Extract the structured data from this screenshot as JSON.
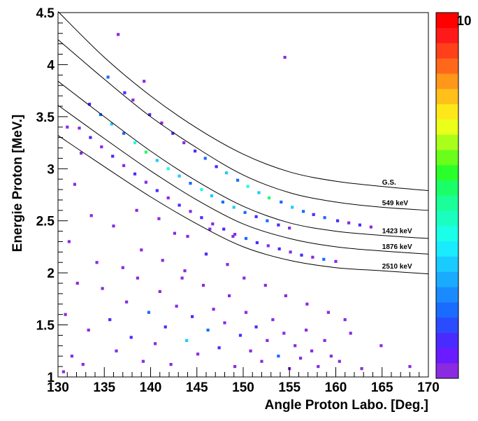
{
  "chart_data": {
    "type": "heatmap",
    "xlabel": "Angle Proton Labo. [Deg.]",
    "ylabel": "Energie Proton [MeV.]",
    "xlim": [
      130,
      170
    ],
    "ylim": [
      1,
      4.5
    ],
    "x_ticks": [
      "130",
      "135",
      "140",
      "145",
      "150",
      "155",
      "160",
      "165",
      "170"
    ],
    "y_ticks": [
      "1",
      "1.5",
      "2",
      "2.5",
      "3",
      "3.5",
      "4",
      "4.5"
    ],
    "colorbar": {
      "min": 0,
      "max": 10,
      "max_label": "10",
      "colors": [
        "#8a2be2",
        "#6a1bff",
        "#4a2bff",
        "#2a4bff",
        "#1a6bff",
        "#1a8bff",
        "#1aabff",
        "#1acbff",
        "#1aebff",
        "#1affe8",
        "#1affc0",
        "#1aff98",
        "#1aff68",
        "#2aff2a",
        "#6aff1a",
        "#aaff1a",
        "#eaff1a",
        "#ffe81a",
        "#ffc01a",
        "#ff981a",
        "#ff681a",
        "#ff401a",
        "#ff1a1a",
        "#ff0000"
      ]
    },
    "kinematic_curves": [
      {
        "label": "G.S.",
        "points": [
          [
            130,
            4.51
          ],
          [
            135,
            4.07
          ],
          [
            140,
            3.7
          ],
          [
            145,
            3.39
          ],
          [
            150,
            3.14
          ],
          [
            155,
            2.97
          ],
          [
            160,
            2.88
          ],
          [
            165,
            2.83
          ],
          [
            170,
            2.79
          ]
        ]
      },
      {
        "label": "549 keV",
        "points": [
          [
            130,
            4.24
          ],
          [
            135,
            3.86
          ],
          [
            140,
            3.5
          ],
          [
            145,
            3.2
          ],
          [
            150,
            2.94
          ],
          [
            155,
            2.77
          ],
          [
            160,
            2.68
          ],
          [
            165,
            2.63
          ],
          [
            170,
            2.6
          ]
        ]
      },
      {
        "label": "1423 keV",
        "points": [
          [
            130,
            3.84
          ],
          [
            135,
            3.5
          ],
          [
            140,
            3.17
          ],
          [
            145,
            2.88
          ],
          [
            150,
            2.64
          ],
          [
            155,
            2.48
          ],
          [
            160,
            2.4
          ],
          [
            165,
            2.36
          ],
          [
            170,
            2.33
          ]
        ]
      },
      {
        "label": "1876 keV",
        "points": [
          [
            130,
            3.61
          ],
          [
            135,
            3.29
          ],
          [
            140,
            2.98
          ],
          [
            145,
            2.7
          ],
          [
            150,
            2.47
          ],
          [
            155,
            2.33
          ],
          [
            160,
            2.25
          ],
          [
            165,
            2.21
          ],
          [
            170,
            2.18
          ]
        ]
      },
      {
        "label": "2510 keV",
        "points": [
          [
            130,
            3.32
          ],
          [
            135,
            3.02
          ],
          [
            140,
            2.73
          ],
          [
            145,
            2.47
          ],
          [
            150,
            2.25
          ],
          [
            155,
            2.12
          ],
          [
            160,
            2.05
          ],
          [
            165,
            2.02
          ],
          [
            170,
            1.99
          ]
        ]
      }
    ],
    "cells": [
      [
        136.5,
        4.29,
        1
      ],
      [
        154.5,
        4.07,
        1
      ],
      [
        139.3,
        3.84,
        1
      ],
      [
        135.4,
        3.88,
        3
      ],
      [
        137.2,
        3.73,
        2
      ],
      [
        138.1,
        3.66,
        1
      ],
      [
        139.9,
        3.52,
        2
      ],
      [
        141.2,
        3.44,
        1
      ],
      [
        142.4,
        3.34,
        2
      ],
      [
        143.6,
        3.25,
        1
      ],
      [
        144.8,
        3.17,
        2
      ],
      [
        145.9,
        3.1,
        3
      ],
      [
        147.1,
        3.02,
        2
      ],
      [
        148.2,
        2.96,
        4
      ],
      [
        149.4,
        2.89,
        3
      ],
      [
        150.5,
        2.83,
        5
      ],
      [
        151.7,
        2.77,
        4
      ],
      [
        152.8,
        2.72,
        6
      ],
      [
        154.1,
        2.68,
        3
      ],
      [
        155.3,
        2.63,
        4
      ],
      [
        156.5,
        2.59,
        3
      ],
      [
        157.6,
        2.56,
        2
      ],
      [
        158.8,
        2.53,
        3
      ],
      [
        160.2,
        2.5,
        2
      ],
      [
        161.4,
        2.48,
        1
      ],
      [
        162.6,
        2.46,
        2
      ],
      [
        163.8,
        2.44,
        1
      ],
      [
        133.4,
        3.62,
        2
      ],
      [
        134.6,
        3.52,
        3
      ],
      [
        135.8,
        3.43,
        4
      ],
      [
        137.1,
        3.34,
        3
      ],
      [
        138.3,
        3.25,
        5
      ],
      [
        139.5,
        3.16,
        6
      ],
      [
        140.7,
        3.08,
        4
      ],
      [
        141.9,
        3.0,
        5
      ],
      [
        143.1,
        2.93,
        4
      ],
      [
        144.3,
        2.86,
        3
      ],
      [
        145.5,
        2.8,
        5
      ],
      [
        146.6,
        2.74,
        4
      ],
      [
        147.8,
        2.68,
        3
      ],
      [
        149.0,
        2.63,
        4
      ],
      [
        150.2,
        2.58,
        3
      ],
      [
        151.4,
        2.54,
        2
      ],
      [
        152.6,
        2.5,
        3
      ],
      [
        153.8,
        2.46,
        2
      ],
      [
        155.0,
        2.43,
        1
      ],
      [
        132.3,
        3.39,
        1
      ],
      [
        133.5,
        3.3,
        2
      ],
      [
        134.7,
        3.21,
        1
      ],
      [
        135.9,
        3.12,
        2
      ],
      [
        137.1,
        3.03,
        1
      ],
      [
        138.3,
        2.95,
        2
      ],
      [
        139.5,
        2.87,
        1
      ],
      [
        140.7,
        2.79,
        2
      ],
      [
        141.9,
        2.72,
        1
      ],
      [
        143.1,
        2.65,
        2
      ],
      [
        144.3,
        2.59,
        1
      ],
      [
        145.5,
        2.53,
        2
      ],
      [
        146.7,
        2.47,
        1
      ],
      [
        147.9,
        2.42,
        2
      ],
      [
        149.1,
        2.37,
        1
      ],
      [
        150.3,
        2.33,
        3
      ],
      [
        151.5,
        2.29,
        2
      ],
      [
        152.7,
        2.26,
        1
      ],
      [
        153.9,
        2.23,
        2
      ],
      [
        155.1,
        2.2,
        1
      ],
      [
        156.3,
        2.17,
        2
      ],
      [
        157.5,
        2.15,
        1
      ],
      [
        158.7,
        2.13,
        3
      ],
      [
        160.0,
        2.11,
        1
      ],
      [
        131.0,
        3.4,
        1
      ],
      [
        132.5,
        3.15,
        1
      ],
      [
        131.8,
        2.85,
        1
      ],
      [
        133.6,
        2.55,
        1
      ],
      [
        131.2,
        2.3,
        1
      ],
      [
        134.2,
        2.1,
        1
      ],
      [
        132.1,
        1.9,
        1
      ],
      [
        130.8,
        1.6,
        1
      ],
      [
        133.3,
        1.45,
        1
      ],
      [
        131.5,
        1.2,
        1
      ],
      [
        130.6,
        1.05,
        1
      ],
      [
        132.7,
        1.12,
        1
      ],
      [
        134.8,
        1.85,
        1
      ],
      [
        135.6,
        1.55,
        2
      ],
      [
        136.3,
        1.25,
        1
      ],
      [
        137.4,
        1.72,
        1
      ],
      [
        137.9,
        1.38,
        2
      ],
      [
        138.6,
        1.95,
        1
      ],
      [
        139.2,
        1.15,
        1
      ],
      [
        139.8,
        1.62,
        3
      ],
      [
        140.5,
        1.32,
        1
      ],
      [
        141.0,
        1.82,
        1
      ],
      [
        141.6,
        1.48,
        2
      ],
      [
        142.2,
        1.12,
        1
      ],
      [
        142.8,
        1.68,
        1
      ],
      [
        143.4,
        1.95,
        1
      ],
      [
        143.9,
        1.35,
        4
      ],
      [
        144.5,
        1.58,
        2
      ],
      [
        145.1,
        1.22,
        1
      ],
      [
        145.7,
        1.88,
        1
      ],
      [
        146.2,
        1.45,
        3
      ],
      [
        146.8,
        1.65,
        1
      ],
      [
        147.4,
        1.28,
        2
      ],
      [
        148.0,
        1.52,
        1
      ],
      [
        148.5,
        1.78,
        1
      ],
      [
        149.1,
        1.1,
        1
      ],
      [
        149.7,
        1.4,
        2
      ],
      [
        150.3,
        1.62,
        1
      ],
      [
        150.8,
        1.25,
        1
      ],
      [
        151.4,
        1.48,
        2
      ],
      [
        152.0,
        1.15,
        1
      ],
      [
        152.6,
        1.35,
        1
      ],
      [
        153.2,
        1.55,
        1
      ],
      [
        153.8,
        1.2,
        3
      ],
      [
        154.4,
        1.42,
        1
      ],
      [
        155.0,
        1.08,
        1
      ],
      [
        155.6,
        1.3,
        1
      ],
      [
        156.2,
        1.18,
        1
      ],
      [
        156.8,
        1.45,
        1
      ],
      [
        157.4,
        1.25,
        1
      ],
      [
        158.1,
        1.1,
        1
      ],
      [
        158.8,
        1.35,
        1
      ],
      [
        159.5,
        1.2,
        1
      ],
      [
        160.4,
        1.15,
        1
      ],
      [
        161.6,
        1.42,
        1
      ],
      [
        162.8,
        1.08,
        1
      ],
      [
        164.9,
        1.3,
        1
      ],
      [
        168.0,
        1.1,
        1
      ],
      [
        137.0,
        2.05,
        1
      ],
      [
        139.0,
        2.22,
        1
      ],
      [
        141.3,
        2.12,
        1
      ],
      [
        143.7,
        2.02,
        1
      ],
      [
        146.0,
        2.18,
        2
      ],
      [
        148.3,
        2.08,
        1
      ],
      [
        150.1,
        1.95,
        1
      ],
      [
        152.4,
        1.88,
        1
      ],
      [
        154.6,
        1.78,
        1
      ],
      [
        156.9,
        1.7,
        1
      ],
      [
        159.2,
        1.62,
        1
      ],
      [
        161.0,
        1.55,
        1
      ],
      [
        144.0,
        2.35,
        1
      ],
      [
        146.4,
        2.42,
        1
      ],
      [
        148.9,
        2.35,
        1
      ],
      [
        136.0,
        2.45,
        1
      ],
      [
        138.5,
        2.6,
        1
      ],
      [
        140.9,
        2.52,
        1
      ],
      [
        142.6,
        2.38,
        1
      ]
    ]
  }
}
